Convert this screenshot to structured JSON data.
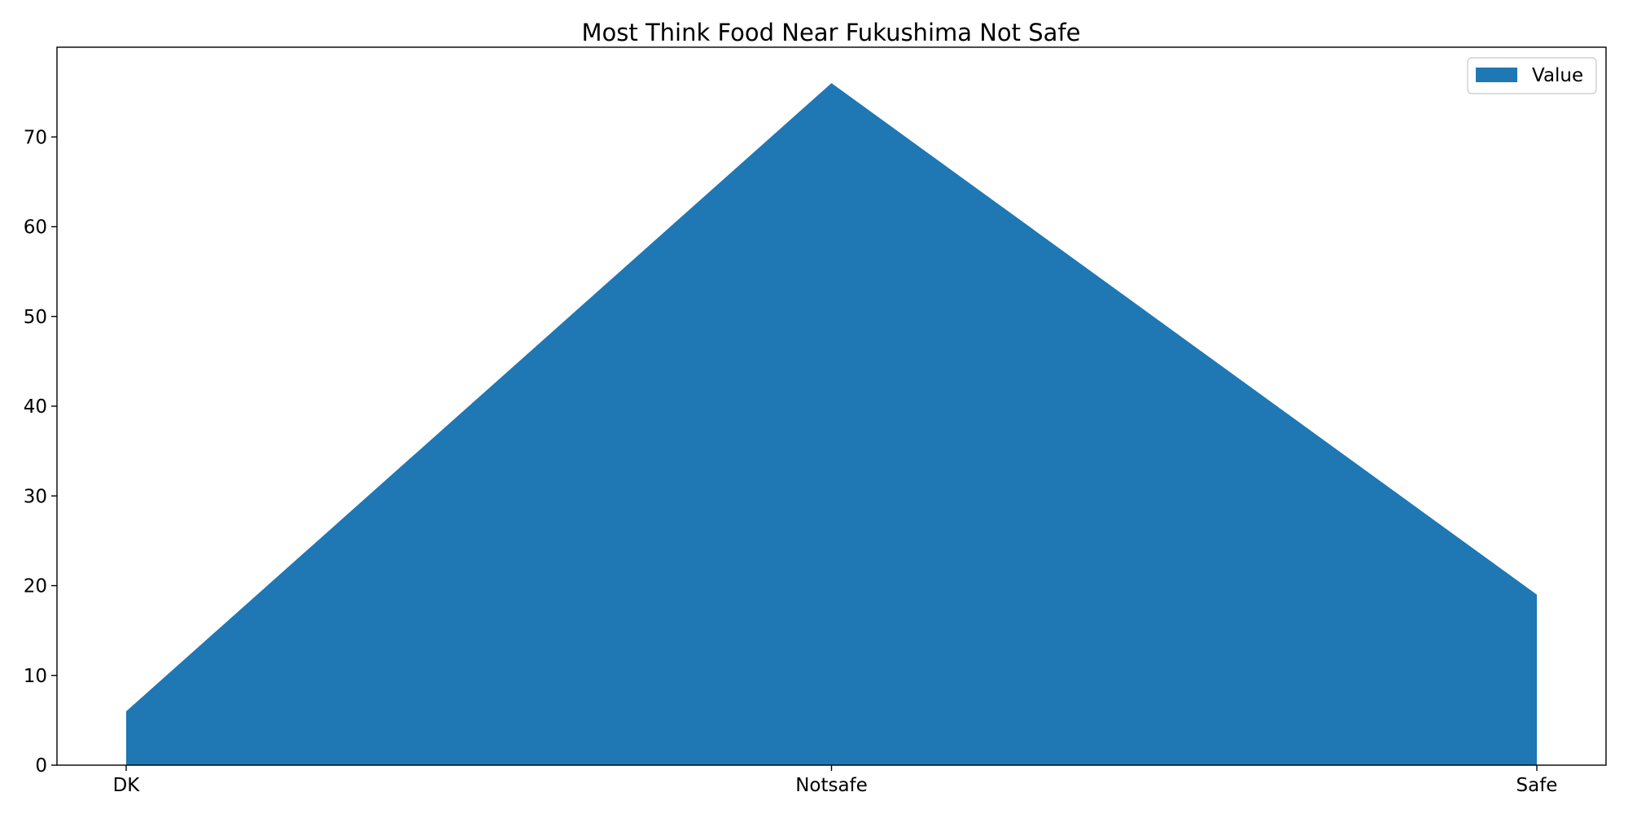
{
  "chart_data": {
    "type": "area",
    "title": "Most Think Food Near Fukushima Not Safe",
    "xlabel": "",
    "ylabel": "",
    "categories": [
      "DK",
      "Notsafe",
      "Safe"
    ],
    "series": [
      {
        "name": "Value",
        "values": [
          6,
          76,
          19
        ],
        "color": "#1f77b4"
      }
    ],
    "ylim": [
      0,
      80
    ],
    "yticks": [
      0,
      10,
      20,
      30,
      40,
      50,
      60,
      70
    ],
    "grid": false,
    "legend": "top-right"
  }
}
